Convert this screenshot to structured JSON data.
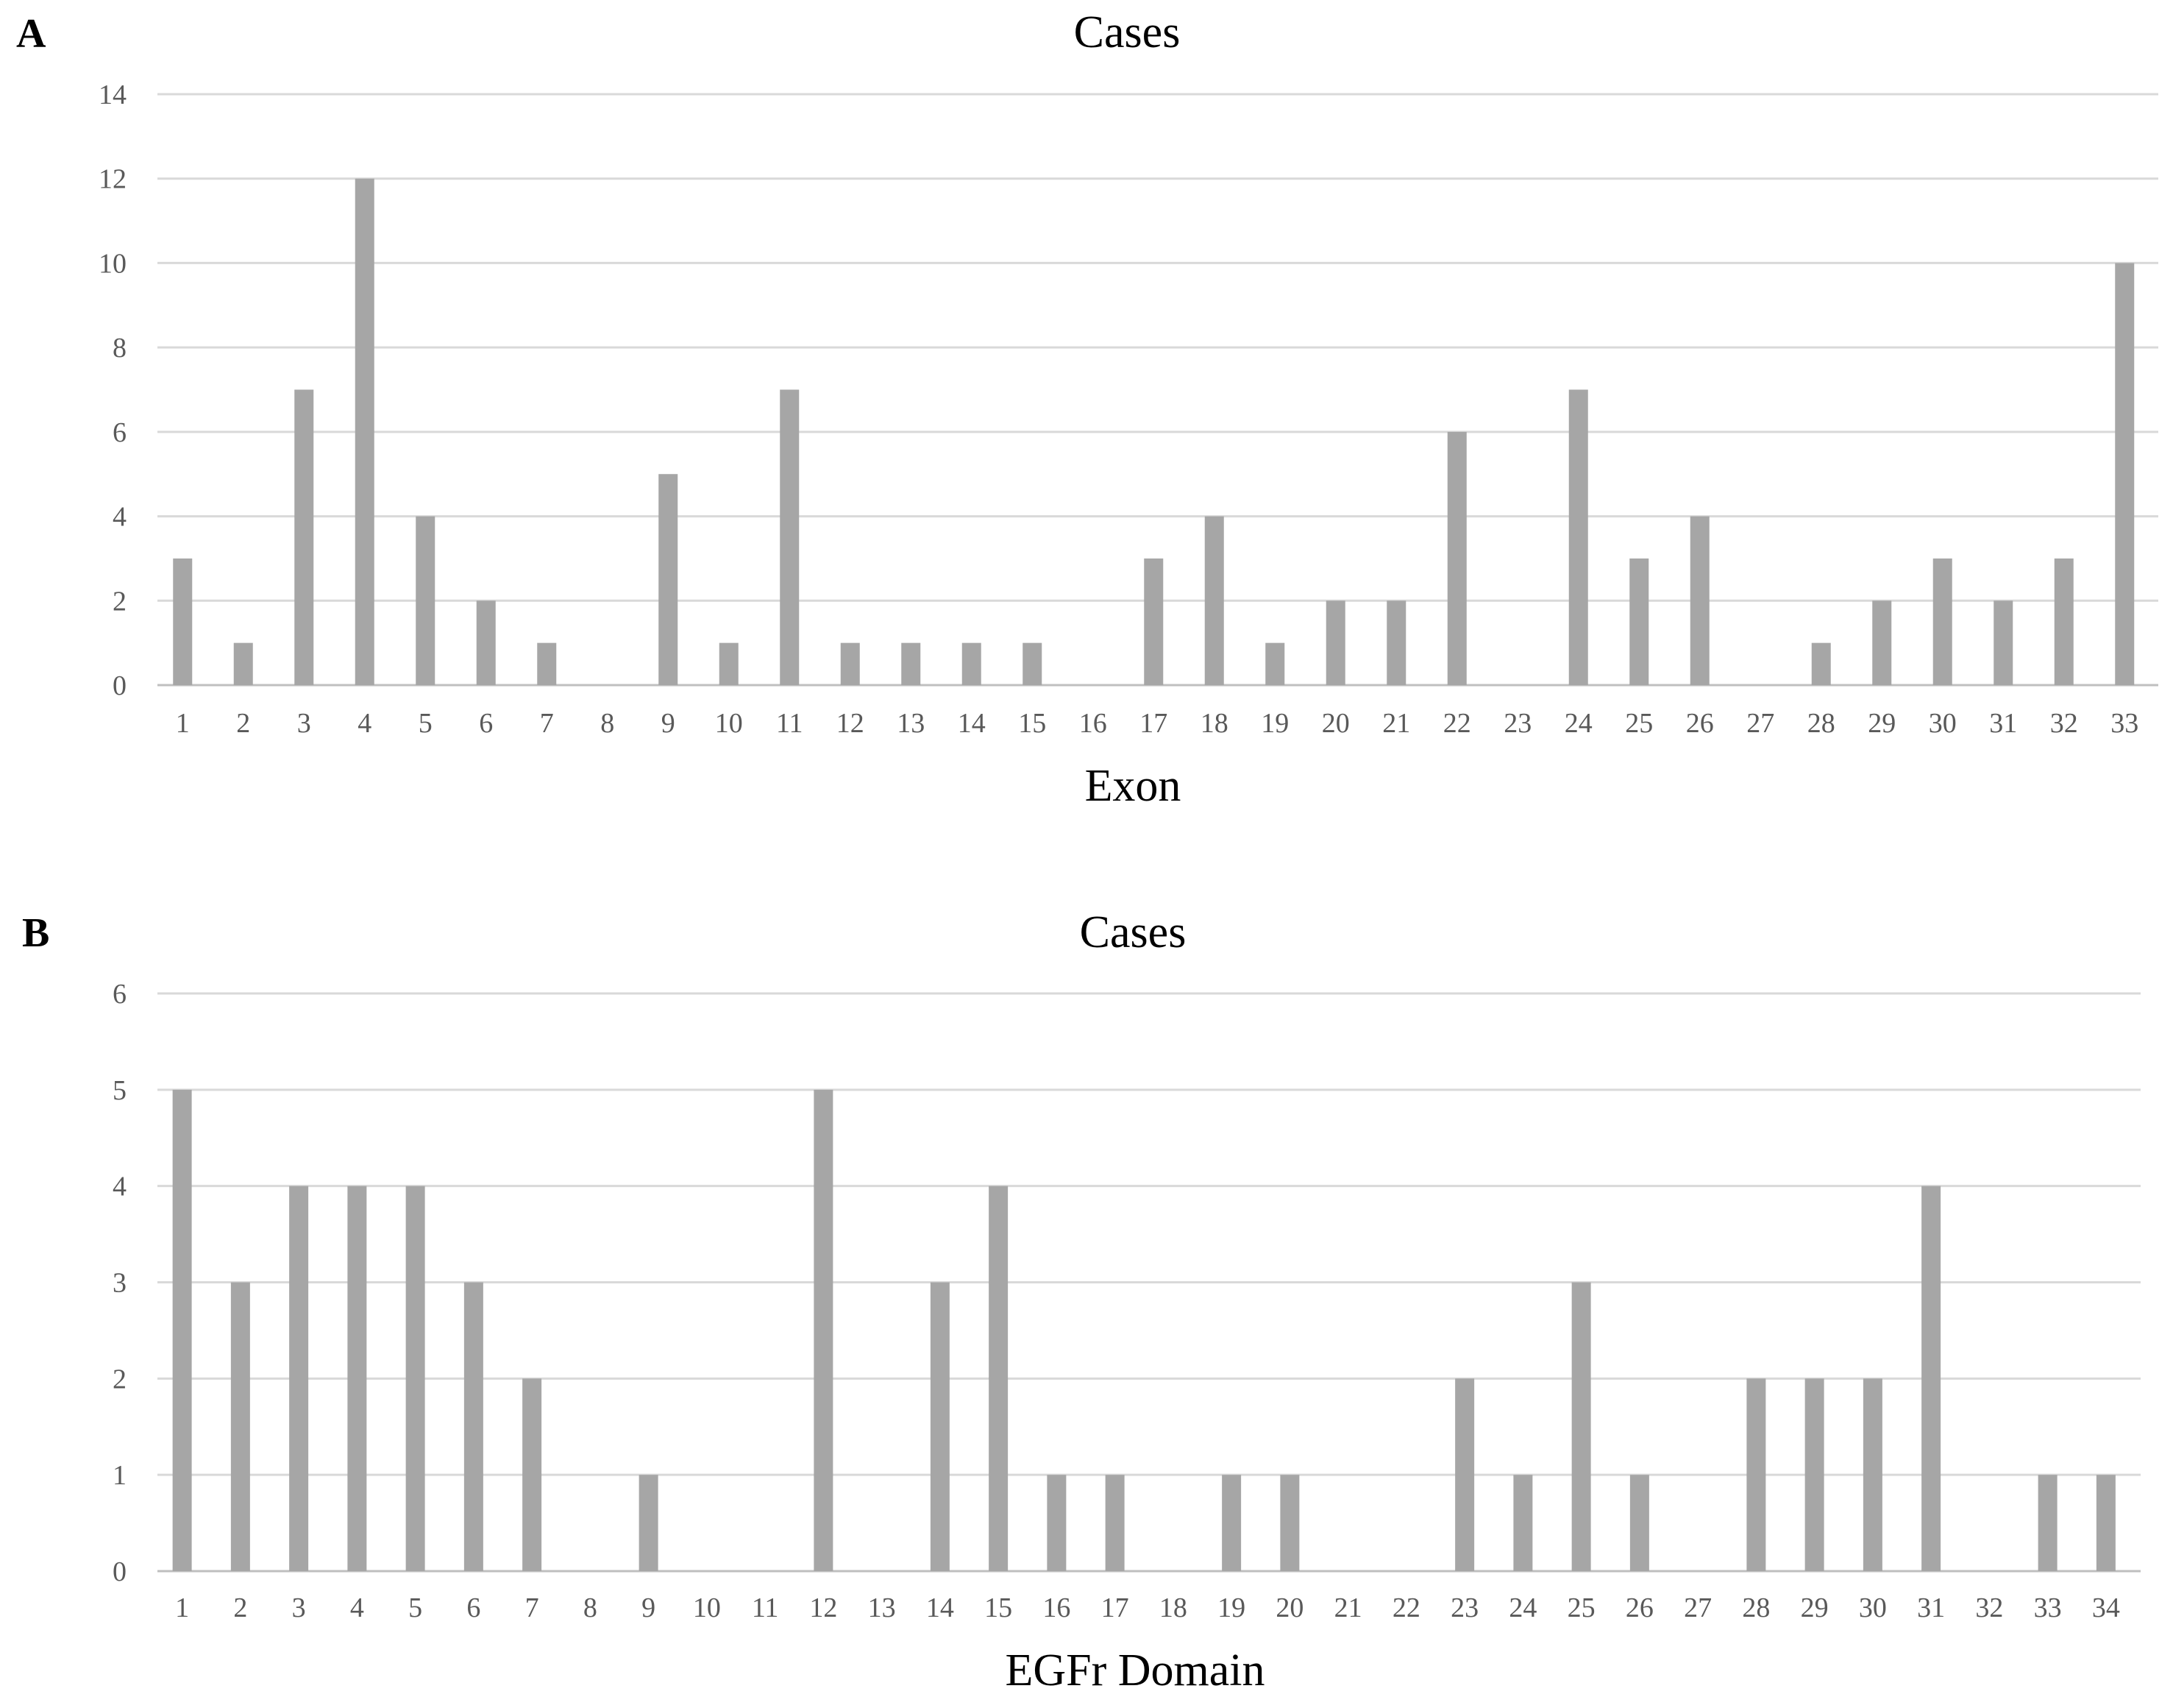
{
  "bar_color": "#a6a6a6",
  "grid_color": "#d9d9d9",
  "chart_data": [
    {
      "type": "bar",
      "panel": "A",
      "title": "Cases",
      "xlabel": "Exon",
      "ylabel": "",
      "ylim": [
        0,
        14
      ],
      "yticks": [
        0,
        2,
        4,
        6,
        8,
        10,
        12,
        14
      ],
      "grid": true,
      "categories": [
        "1",
        "2",
        "3",
        "4",
        "5",
        "6",
        "7",
        "8",
        "9",
        "10",
        "11",
        "12",
        "13",
        "14",
        "15",
        "16",
        "17",
        "18",
        "19",
        "20",
        "21",
        "22",
        "23",
        "24",
        "25",
        "26",
        "27",
        "28",
        "29",
        "30",
        "31",
        "32",
        "33"
      ],
      "values": [
        3,
        1,
        7,
        12,
        4,
        2,
        1,
        0,
        5,
        1,
        7,
        1,
        1,
        1,
        1,
        0,
        3,
        4,
        1,
        2,
        2,
        6,
        0,
        7,
        3,
        4,
        0,
        1,
        2,
        3,
        2,
        3,
        10
      ]
    },
    {
      "type": "bar",
      "panel": "B",
      "title": "Cases",
      "xlabel": "EGFr Domain",
      "ylabel": "",
      "ylim": [
        0,
        6
      ],
      "yticks": [
        0,
        1,
        2,
        3,
        4,
        5,
        6
      ],
      "grid": true,
      "categories": [
        "1",
        "2",
        "3",
        "4",
        "5",
        "6",
        "7",
        "8",
        "9",
        "10",
        "11",
        "12",
        "13",
        "14",
        "15",
        "16",
        "17",
        "18",
        "19",
        "20",
        "21",
        "22",
        "23",
        "24",
        "25",
        "26",
        "27",
        "28",
        "29",
        "30",
        "31",
        "32",
        "33",
        "34"
      ],
      "values": [
        5,
        3,
        4,
        4,
        4,
        3,
        2,
        0,
        1,
        0,
        0,
        5,
        0,
        3,
        4,
        1,
        1,
        0,
        1,
        1,
        0,
        0,
        2,
        1,
        3,
        1,
        0,
        2,
        2,
        2,
        4,
        0,
        1,
        1
      ]
    }
  ]
}
